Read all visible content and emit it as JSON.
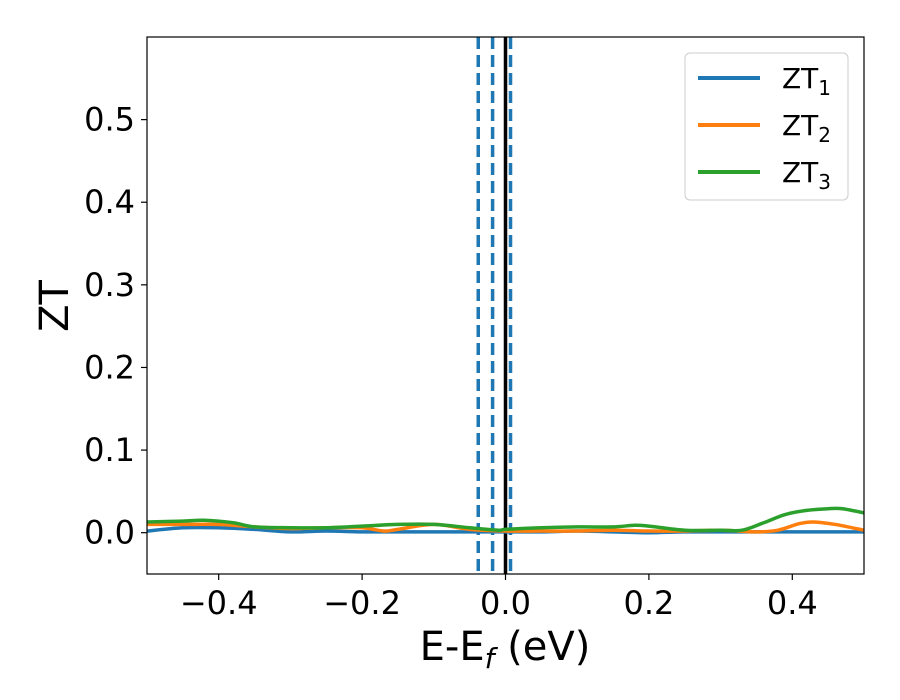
{
  "chart_data": {
    "type": "line",
    "xlabel": {
      "base": "E-E",
      "sub": "f",
      "suffix": " (eV)"
    },
    "ylabel": "ZT",
    "xlim": [
      -0.5,
      0.5
    ],
    "ylim": [
      -0.05,
      0.6
    ],
    "xticks": [
      -0.4,
      -0.2,
      0.0,
      0.2,
      0.4
    ],
    "xtick_labels": [
      "−0.4",
      "−0.2",
      "0.0",
      "0.2",
      "0.4"
    ],
    "yticks": [
      0.0,
      0.1,
      0.2,
      0.3,
      0.4,
      0.5
    ],
    "ytick_labels": [
      "0.0",
      "0.1",
      "0.2",
      "0.3",
      "0.4",
      "0.5"
    ],
    "grid": false,
    "legend_position": "top-right",
    "series": [
      {
        "name": "ZT",
        "name_sub": "1",
        "color": "#1f77b4",
        "x": [
          -0.5,
          -0.45,
          -0.4,
          -0.35,
          -0.3,
          -0.25,
          -0.2,
          -0.15,
          -0.1,
          -0.05,
          0.0,
          0.05,
          0.1,
          0.15,
          0.2,
          0.25,
          0.3,
          0.35,
          0.4,
          0.45,
          0.5
        ],
        "y": [
          0.002,
          0.006,
          0.006,
          0.004,
          0.001,
          0.002,
          0.001,
          0.001,
          0.001,
          0.001,
          0.001,
          0.001,
          0.002,
          0.001,
          0.0,
          0.001,
          0.001,
          0.001,
          0.001,
          0.001,
          0.001
        ]
      },
      {
        "name": "ZT",
        "name_sub": "2",
        "color": "#ff7f0e",
        "x": [
          -0.5,
          -0.45,
          -0.4,
          -0.35,
          -0.3,
          -0.25,
          -0.2,
          -0.17,
          -0.15,
          -0.1,
          -0.05,
          0.0,
          0.05,
          0.1,
          0.15,
          0.2,
          0.25,
          0.3,
          0.35,
          0.38,
          0.41,
          0.43,
          0.46,
          0.5
        ],
        "y": [
          0.01,
          0.01,
          0.01,
          0.007,
          0.005,
          0.006,
          0.006,
          0.002,
          0.004,
          0.01,
          0.004,
          0.002,
          0.002,
          0.002,
          0.003,
          0.002,
          0.002,
          0.003,
          0.001,
          0.003,
          0.011,
          0.013,
          0.01,
          0.003
        ]
      },
      {
        "name": "ZT",
        "name_sub": "3",
        "color": "#2ca02c",
        "x": [
          -0.5,
          -0.45,
          -0.42,
          -0.38,
          -0.35,
          -0.3,
          -0.25,
          -0.2,
          -0.15,
          -0.1,
          -0.05,
          -0.01,
          0.0,
          0.05,
          0.1,
          0.15,
          0.18,
          0.2,
          0.25,
          0.3,
          0.33,
          0.36,
          0.39,
          0.42,
          0.45,
          0.47,
          0.5
        ],
        "y": [
          0.013,
          0.014,
          0.015,
          0.012,
          0.007,
          0.006,
          0.006,
          0.008,
          0.01,
          0.01,
          0.006,
          0.003,
          0.004,
          0.006,
          0.007,
          0.007,
          0.009,
          0.008,
          0.003,
          0.003,
          0.003,
          0.012,
          0.022,
          0.027,
          0.029,
          0.029,
          0.024
        ]
      }
    ],
    "vertical_lines": [
      {
        "x": -0.038,
        "style": "dashed",
        "color": "#1f77b4"
      },
      {
        "x": -0.018,
        "style": "dashed",
        "color": "#1f77b4"
      },
      {
        "x": 0.0,
        "style": "solid",
        "color": "#000000"
      },
      {
        "x": 0.007,
        "style": "dashed",
        "color": "#1f77b4"
      }
    ]
  }
}
